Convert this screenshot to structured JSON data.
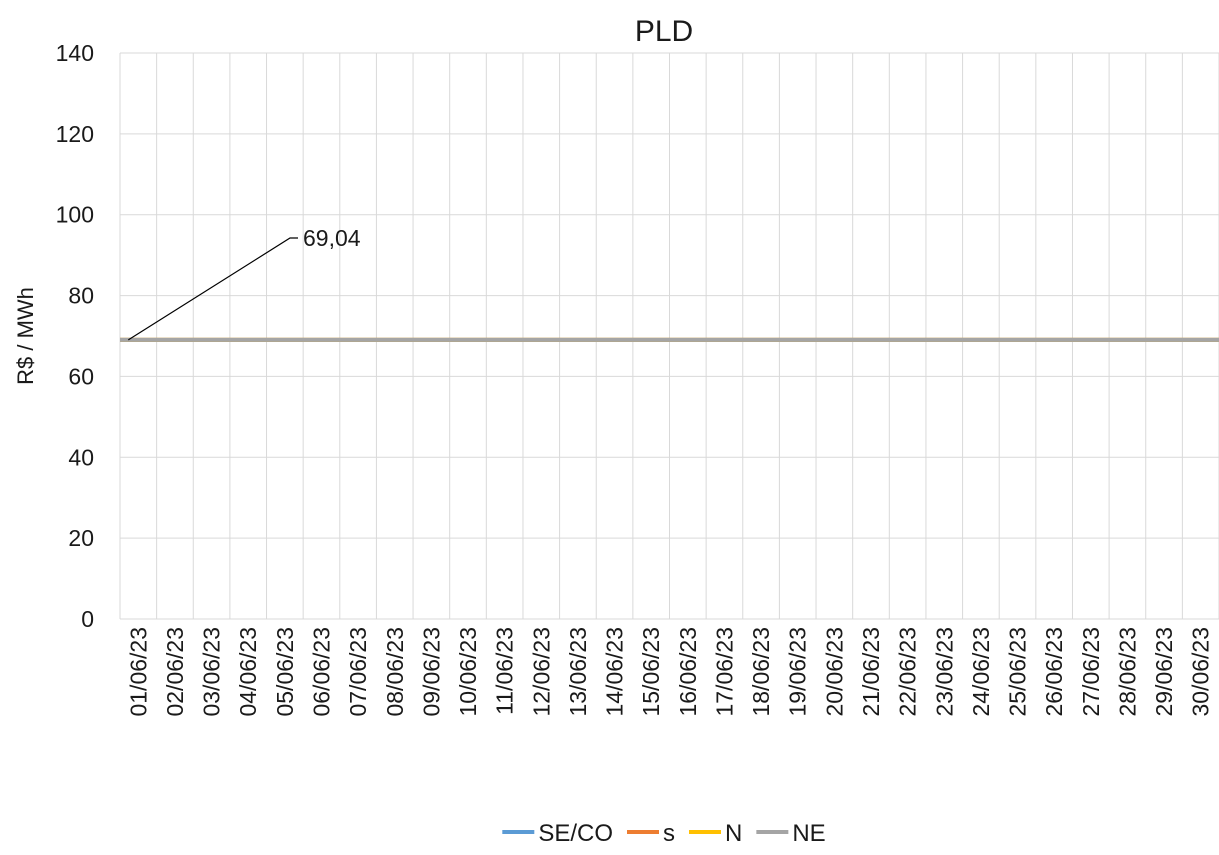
{
  "chart_data": {
    "type": "line",
    "title": "PLD",
    "xlabel": "",
    "ylabel": "R$ / MWh",
    "ylim": [
      0,
      140
    ],
    "yticks": [
      0,
      20,
      40,
      60,
      80,
      100,
      120,
      140
    ],
    "grid": true,
    "legend_position": "bottom",
    "categories": [
      "01/06/23",
      "02/06/23",
      "03/06/23",
      "04/06/23",
      "05/06/23",
      "06/06/23",
      "07/06/23",
      "08/06/23",
      "09/06/23",
      "10/06/23",
      "11/06/23",
      "12/06/23",
      "13/06/23",
      "14/06/23",
      "15/06/23",
      "16/06/23",
      "17/06/23",
      "18/06/23",
      "19/06/23",
      "20/06/23",
      "21/06/23",
      "22/06/23",
      "23/06/23",
      "24/06/23",
      "25/06/23",
      "26/06/23",
      "27/06/23",
      "28/06/23",
      "29/06/23",
      "30/06/23"
    ],
    "series": [
      {
        "name": "SE/CO",
        "color": "#5b9bd5",
        "values": [
          69.04,
          69.04,
          69.04,
          69.04,
          69.04,
          69.04,
          69.04,
          69.04,
          69.04,
          69.04,
          69.04,
          69.04,
          69.04,
          69.04,
          69.04,
          69.04,
          69.04,
          69.04,
          69.04,
          69.04,
          69.04,
          69.04,
          69.04,
          69.04,
          69.04,
          69.04,
          69.04,
          69.04,
          69.04,
          69.04
        ]
      },
      {
        "name": "s",
        "color": "#ed7d31",
        "values": [
          69.04,
          69.04,
          69.04,
          69.04,
          69.04,
          69.04,
          69.04,
          69.04,
          69.04,
          69.04,
          69.04,
          69.04,
          69.04,
          69.04,
          69.04,
          69.04,
          69.04,
          69.04,
          69.04,
          69.04,
          69.04,
          69.04,
          69.04,
          69.04,
          69.04,
          69.04,
          69.04,
          69.04,
          69.04,
          69.04
        ]
      },
      {
        "name": "N",
        "color": "#ffc000",
        "values": [
          69.04,
          69.04,
          69.04,
          69.04,
          69.04,
          69.04,
          69.04,
          69.04,
          69.04,
          69.04,
          69.04,
          69.04,
          69.04,
          69.04,
          69.04,
          69.04,
          69.04,
          69.04,
          69.04,
          69.04,
          69.04,
          69.04,
          69.04,
          69.04,
          69.04,
          69.04,
          69.04,
          69.04,
          69.04,
          69.04
        ]
      },
      {
        "name": "NE",
        "color": "#a5a5a5",
        "values": [
          69.04,
          69.04,
          69.04,
          69.04,
          69.04,
          69.04,
          69.04,
          69.04,
          69.04,
          69.04,
          69.04,
          69.04,
          69.04,
          69.04,
          69.04,
          69.04,
          69.04,
          69.04,
          69.04,
          69.04,
          69.04,
          69.04,
          69.04,
          69.04,
          69.04,
          69.04,
          69.04,
          69.04,
          69.04,
          69.04
        ]
      }
    ],
    "annotations": [
      {
        "text": "69,04",
        "category": "01/06/23",
        "value": 69.04
      }
    ]
  }
}
